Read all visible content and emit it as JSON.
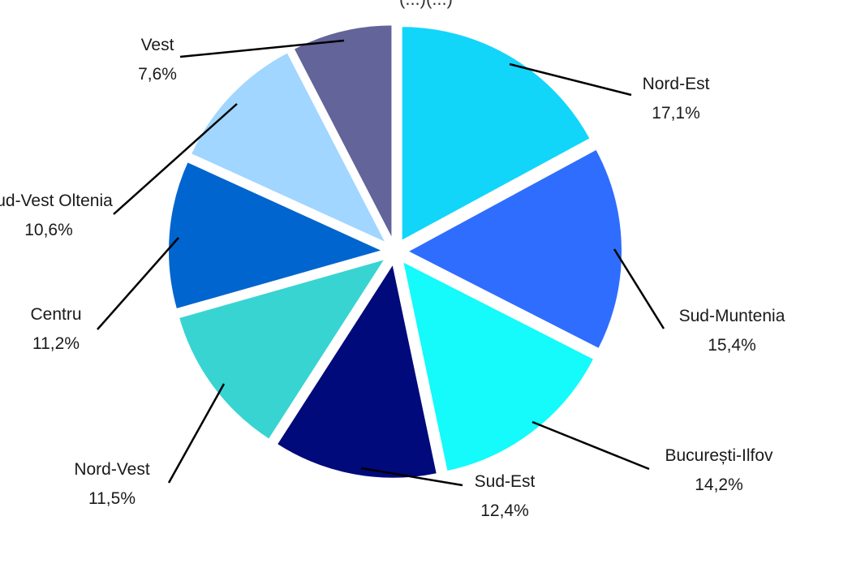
{
  "title": "(...)(...)",
  "chart_data": {
    "type": "pie",
    "unit": "%",
    "slices": [
      {
        "name": "Nord-Est",
        "value": 17.1,
        "label": "17,1%",
        "color": "#12D5FA"
      },
      {
        "name": "Sud-Muntenia",
        "value": 15.4,
        "label": "15,4%",
        "color": "#2F6DFF"
      },
      {
        "name": "București-Ilfov",
        "value": 14.2,
        "label": "14,2%",
        "color": "#15FAFA"
      },
      {
        "name": "Sud-Est",
        "value": 12.4,
        "label": "12,4%",
        "color": "#000A7A"
      },
      {
        "name": "Nord-Vest",
        "value": 11.5,
        "label": "11,5%",
        "color": "#38D4D2"
      },
      {
        "name": "Centru",
        "value": 11.2,
        "label": "11,2%",
        "color": "#0065CE"
      },
      {
        "name": "Sud-Vest Oltenia",
        "value": 10.6,
        "label": "10,6%",
        "color": "#A0D6FF"
      },
      {
        "name": "Vest",
        "value": 7.6,
        "label": "7,6%",
        "color": "#636499"
      }
    ]
  }
}
